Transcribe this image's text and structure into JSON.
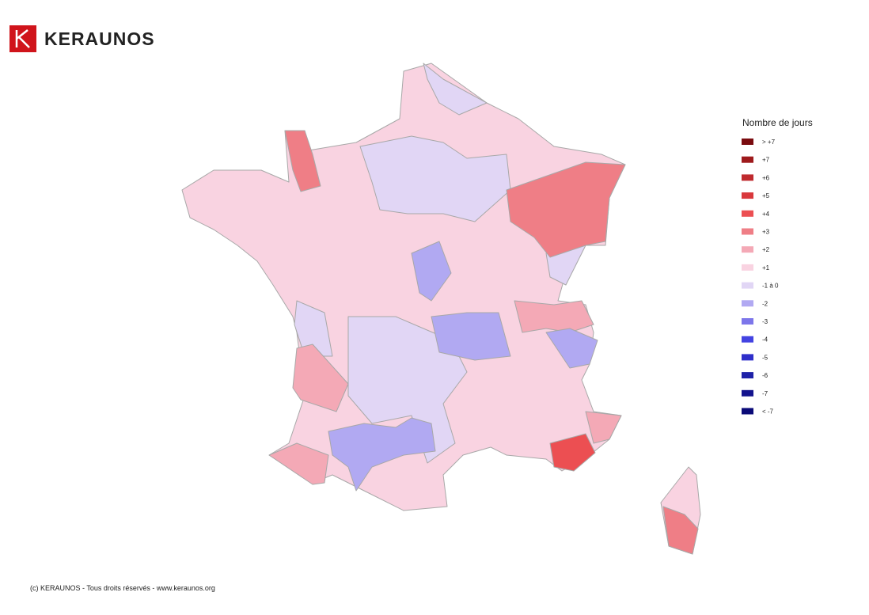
{
  "header": {
    "brand": "KERAUNOS"
  },
  "legend": {
    "title": "Nombre de jours",
    "items": [
      {
        "label": "> +7",
        "color": "#7a0b0f"
      },
      {
        "label": "+7",
        "color": "#9e1a1c"
      },
      {
        "label": "+6",
        "color": "#bf2a2e"
      },
      {
        "label": "+5",
        "color": "#d9383c"
      },
      {
        "label": "+4",
        "color": "#ec4f52"
      },
      {
        "label": "+3",
        "color": "#ef7e86"
      },
      {
        "label": "+2",
        "color": "#f4a9b6"
      },
      {
        "label": "+1",
        "color": "#f9d3e1"
      },
      {
        "label": "-1 à 0",
        "color": "#e1d6f5"
      },
      {
        "label": "-2",
        "color": "#b1a9f2"
      },
      {
        "label": "-3",
        "color": "#7d76ea"
      },
      {
        "label": "-4",
        "color": "#4343e2"
      },
      {
        "label": "-5",
        "color": "#2f2fca"
      },
      {
        "label": "-6",
        "color": "#1f22a8"
      },
      {
        "label": "-7",
        "color": "#13138e"
      },
      {
        "label": "< -7",
        "color": "#0a0a78"
      }
    ]
  },
  "footer": {
    "copyright": "(c) KERAUNOS - Tous droits réservés - www.keraunos.org"
  }
}
